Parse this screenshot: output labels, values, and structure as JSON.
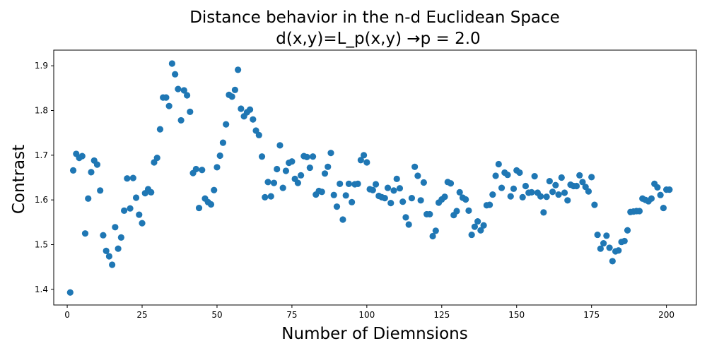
{
  "chart_data": {
    "type": "scatter",
    "title_line1": "Distance behavior in the n-d Euclidean Space",
    "title_line2": "d(x,y)=L_p(x,y) →p =  2.0",
    "xlabel": "Number of Diemnsions",
    "ylabel": "Contrast",
    "xlim": [
      -4.5,
      210
    ],
    "ylim": [
      1.365,
      1.935
    ],
    "xticks": [
      0,
      25,
      50,
      75,
      100,
      125,
      150,
      175,
      200
    ],
    "xtick_labels": [
      "0",
      "25",
      "50",
      "75",
      "100",
      "125",
      "150",
      "175",
      "200"
    ],
    "yticks": [
      1.4,
      1.5,
      1.6,
      1.7,
      1.8,
      1.9
    ],
    "ytick_labels": [
      "1.4",
      "1.5",
      "1.6",
      "1.7",
      "1.8",
      "1.9"
    ],
    "marker_color": "#1f77b4",
    "x_start": 1,
    "y": [
      1.393,
      1.666,
      1.703,
      1.694,
      1.698,
      1.525,
      1.603,
      1.662,
      1.688,
      1.679,
      1.621,
      1.521,
      1.486,
      1.474,
      1.455,
      1.539,
      1.491,
      1.516,
      1.576,
      1.648,
      1.581,
      1.649,
      1.605,
      1.567,
      1.548,
      1.615,
      1.624,
      1.617,
      1.684,
      1.694,
      1.758,
      1.829,
      1.829,
      1.81,
      1.905,
      1.881,
      1.848,
      1.778,
      1.845,
      1.834,
      1.797,
      1.66,
      1.669,
      1.582,
      1.667,
      1.603,
      1.595,
      1.59,
      1.622,
      1.673,
      1.699,
      1.728,
      1.769,
      1.835,
      1.831,
      1.846,
      1.891,
      1.804,
      1.787,
      1.796,
      1.802,
      1.78,
      1.755,
      1.745,
      1.697,
      1.606,
      1.64,
      1.608,
      1.638,
      1.669,
      1.722,
      1.627,
      1.665,
      1.683,
      1.686,
      1.647,
      1.638,
      1.655,
      1.698,
      1.696,
      1.672,
      1.697,
      1.612,
      1.62,
      1.618,
      1.659,
      1.674,
      1.705,
      1.611,
      1.585,
      1.636,
      1.556,
      1.61,
      1.636,
      1.595,
      1.635,
      1.636,
      1.689,
      1.7,
      1.684,
      1.624,
      1.622,
      1.635,
      1.609,
      1.606,
      1.604,
      1.627,
      1.593,
      1.621,
      1.647,
      1.626,
      1.596,
      1.561,
      1.545,
      1.604,
      1.674,
      1.654,
      1.599,
      1.639,
      1.568,
      1.568,
      1.519,
      1.531,
      1.594,
      1.601,
      1.607,
      1.64,
      1.637,
      1.566,
      1.575,
      1.617,
      1.605,
      1.601,
      1.576,
      1.522,
      1.54,
      1.552,
      1.532,
      1.543,
      1.588,
      1.589,
      1.612,
      1.654,
      1.68,
      1.627,
      1.661,
      1.656,
      1.608,
      1.625,
      1.666,
      1.661,
      1.606,
      1.631,
      1.616,
      1.617,
      1.653,
      1.616,
      1.608,
      1.572,
      1.607,
      1.642,
      1.618,
      1.633,
      1.612,
      1.65,
      1.616,
      1.599,
      1.634,
      1.631,
      1.631,
      1.655,
      1.64,
      1.629,
      1.619,
      1.651,
      1.589,
      1.522,
      1.491,
      1.503,
      1.52,
      1.493,
      1.463,
      1.485,
      1.487,
      1.506,
      1.508,
      1.532,
      1.573,
      1.574,
      1.575,
      1.575,
      1.603,
      1.6,
      1.597,
      1.603,
      1.636,
      1.628,
      1.611,
      1.582,
      1.623,
      1.623
    ]
  }
}
